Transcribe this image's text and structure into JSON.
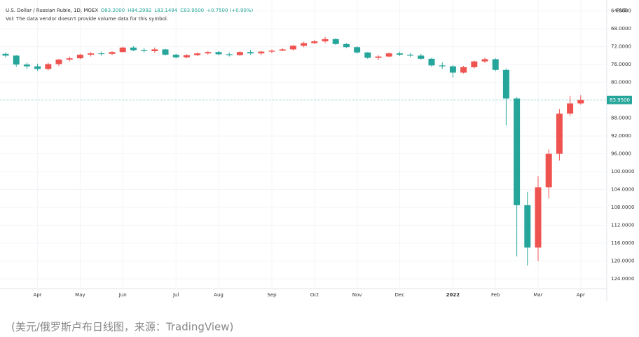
{
  "chart_data": {
    "type": "candlestick",
    "title": "U.S. Dollar / Russian Ruble, 1D, MOEX",
    "header_values": [
      "O83.2000",
      "H84.2992",
      "L83.1494",
      "C83.9500",
      "+0.7500 (+0.90%)"
    ],
    "subtitle": "Vol: The data vendor doesn't provide volume data for this symbol.",
    "currency": "RUB",
    "caption": "(美元/俄罗斯卢布日线图，来源：TradingView)",
    "y_inverted": true,
    "grid": true,
    "up_color": "#26a69a",
    "down_color": "#ef5350",
    "categories": [
      null,
      null,
      null,
      "Apr",
      null,
      null,
      null,
      "May",
      null,
      null,
      null,
      "Jun",
      null,
      null,
      null,
      null,
      "Jul",
      null,
      null,
      null,
      "Aug",
      null,
      null,
      null,
      null,
      "Sep",
      null,
      null,
      null,
      "Oct",
      null,
      null,
      null,
      "Nov",
      null,
      null,
      null,
      "Dec",
      null,
      null,
      null,
      null,
      "2022",
      null,
      null,
      null,
      "Feb",
      null,
      null,
      null,
      "Mar",
      null,
      null,
      null,
      "Apr"
    ],
    "open": [
      73.6,
      74.0,
      76.0,
      76.4,
      77.0,
      75.9,
      74.9,
      74.6,
      73.8,
      73.5,
      73.6,
      73.2,
      72.2,
      72.8,
      73.0,
      72.6,
      73.8,
      74.4,
      73.9,
      73.5,
      73.2,
      73.7,
      73.9,
      73.2,
      73.5,
      73.1,
      72.9,
      72.6,
      71.8,
      71.2,
      70.8,
      70.3,
      71.4,
      72.1,
      73.3,
      74.5,
      74.2,
      73.5,
      73.8,
      74.0,
      74.7,
      76.2,
      76.4,
      77.8,
      76.6,
      75.3,
      74.8,
      77.2,
      83.6,
      107.5,
      117.0,
      103.5,
      96.0,
      87.0,
      84.7
    ],
    "high": [
      74.4,
      76.5,
      77.0,
      77.4,
      77.3,
      76.3,
      75.3,
      74.8,
      74.2,
      74.0,
      73.9,
      73.3,
      73.0,
      73.3,
      73.4,
      74.0,
      74.6,
      74.6,
      74.1,
      73.8,
      73.9,
      74.2,
      74.0,
      73.8,
      73.9,
      73.5,
      73.0,
      72.9,
      72.1,
      71.4,
      71.2,
      71.6,
      72.3,
      73.6,
      74.7,
      75.0,
      74.4,
      74.1,
      74.3,
      74.9,
      76.5,
      77.0,
      78.9,
      78.0,
      76.9,
      75.6,
      77.5,
      89.6,
      119.0,
      121.0,
      120.0,
      106.0,
      97.5,
      87.5,
      85.0
    ],
    "low": [
      73.3,
      73.9,
      75.6,
      75.8,
      75.6,
      74.7,
      74.2,
      73.6,
      73.2,
      73.1,
      73.0,
      72.0,
      71.9,
      72.3,
      72.2,
      72.5,
      73.6,
      73.7,
      73.3,
      73.0,
      73.0,
      73.3,
      73.0,
      72.7,
      72.9,
      72.6,
      72.3,
      71.6,
      70.9,
      70.5,
      69.8,
      70.1,
      71.2,
      71.9,
      73.2,
      73.9,
      73.3,
      73.1,
      73.4,
      73.6,
      74.5,
      75.5,
      76.1,
      76.3,
      75.1,
      74.5,
      74.6,
      76.9,
      83.3,
      104.5,
      101.0,
      95.0,
      86.0,
      83.0,
      82.9
    ],
    "close": [
      74.0,
      76.0,
      76.4,
      77.0,
      75.9,
      74.9,
      74.6,
      73.8,
      73.5,
      73.6,
      73.2,
      72.2,
      72.8,
      73.0,
      72.6,
      73.8,
      74.4,
      73.9,
      73.5,
      73.2,
      73.7,
      73.9,
      73.2,
      73.5,
      73.1,
      72.9,
      72.6,
      71.8,
      71.2,
      70.8,
      70.3,
      71.4,
      72.1,
      73.3,
      74.5,
      74.2,
      73.5,
      73.8,
      74.0,
      74.7,
      76.2,
      76.4,
      77.8,
      76.6,
      75.3,
      74.8,
      77.2,
      83.6,
      107.5,
      117.0,
      103.5,
      96.0,
      87.0,
      84.7,
      83.95
    ],
    "last_price": {
      "value": 83.95,
      "label": "83.9500"
    },
    "ylim": [
      62.8,
      126.2
    ],
    "yticks": [
      {
        "value": 64,
        "label": "64.0000"
      },
      {
        "value": 68,
        "label": "68.0000"
      },
      {
        "value": 72,
        "label": "72.0000"
      },
      {
        "value": 76,
        "label": "76.0000"
      },
      {
        "value": 80,
        "label": "80.0000"
      },
      {
        "value": 88,
        "label": "88.0000"
      },
      {
        "value": 92,
        "label": "92.0000"
      },
      {
        "value": 96,
        "label": "96.0000"
      },
      {
        "value": 100,
        "label": "100.0000"
      },
      {
        "value": 104,
        "label": "104.0000"
      },
      {
        "value": 108,
        "label": "108.0000"
      },
      {
        "value": 112,
        "label": "112.0000"
      },
      {
        "value": 116,
        "label": "116.0000"
      },
      {
        "value": 120,
        "label": "120.0000"
      },
      {
        "value": 124,
        "label": "124.0000"
      }
    ]
  }
}
